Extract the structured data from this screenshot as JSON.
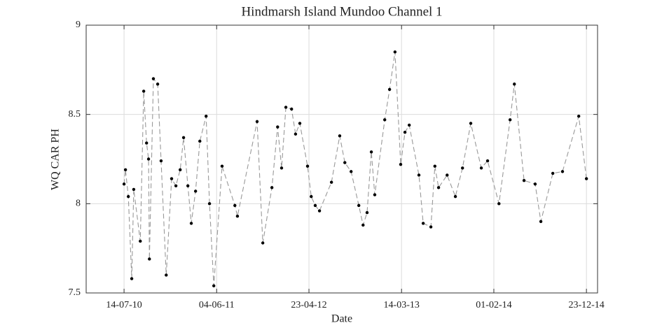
{
  "chart_data": {
    "type": "line",
    "title": "Hindmarsh Island Mundoo Channel 1",
    "x_label": "Date",
    "y_label": "WQ CAR PH",
    "x": [
      "2010-07-14",
      "2010-07-19",
      "2010-07-29",
      "2010-08-10",
      "2010-08-17",
      "2010-09-09",
      "2010-09-21",
      "2010-10-01",
      "2010-10-08",
      "2010-10-11",
      "2010-10-25",
      "2010-11-09",
      "2010-11-21",
      "2010-12-09",
      "2010-12-28",
      "2011-01-12",
      "2011-01-27",
      "2011-02-08",
      "2011-02-23",
      "2011-03-07",
      "2011-03-22",
      "2011-04-06",
      "2011-04-28",
      "2011-05-10",
      "2011-05-25",
      "2011-06-23",
      "2011-08-07",
      "2011-08-16",
      "2011-10-24",
      "2011-11-13",
      "2011-12-15",
      "2012-01-04",
      "2012-01-18",
      "2012-02-02",
      "2012-02-22",
      "2012-03-07",
      "2012-03-22",
      "2012-04-18",
      "2012-05-01",
      "2012-05-15",
      "2012-05-30",
      "2012-07-11",
      "2012-08-09",
      "2012-08-27",
      "2012-09-18",
      "2012-10-15",
      "2012-10-30",
      "2012-11-13",
      "2012-11-28",
      "2012-12-10",
      "2013-01-14",
      "2013-01-31",
      "2013-02-19",
      "2013-03-11",
      "2013-03-26",
      "2013-04-10",
      "2013-05-14",
      "2013-05-29",
      "2013-06-25",
      "2013-07-09",
      "2013-07-22",
      "2013-08-21",
      "2013-09-19",
      "2013-10-14",
      "2013-11-12",
      "2013-12-19",
      "2014-01-10",
      "2014-02-19",
      "2014-03-30",
      "2014-04-14",
      "2014-05-18",
      "2014-06-26",
      "2014-07-16",
      "2014-08-27",
      "2014-09-30",
      "2014-11-26",
      "2014-12-23"
    ],
    "series": [
      {
        "color": "#999999",
        "values": [
          8.11,
          8.19,
          8.04,
          7.58,
          8.08,
          7.79,
          8.63,
          8.34,
          8.25,
          7.69,
          8.7,
          8.67,
          8.24,
          7.6,
          8.14,
          8.1,
          8.19,
          8.37,
          8.1,
          7.89,
          8.07,
          8.35,
          8.49,
          8.0,
          7.54,
          8.21,
          7.99,
          7.93,
          8.46,
          7.78,
          8.09,
          8.43,
          8.2,
          8.54,
          8.53,
          8.39,
          8.45,
          8.21,
          8.04,
          7.99,
          7.96,
          8.12,
          8.38,
          8.23,
          8.18,
          7.99,
          7.88,
          7.95,
          8.29,
          8.05,
          8.47,
          8.64,
          8.85,
          8.22,
          8.4,
          8.44,
          8.16,
          7.89,
          7.87,
          8.21,
          8.09,
          8.16,
          8.04,
          8.2,
          8.45,
          8.2,
          8.24,
          8.0,
          8.47,
          8.67,
          8.13,
          8.11,
          7.9,
          8.17,
          8.18,
          8.49,
          8.14
        ]
      }
    ],
    "marker_color": "#000000",
    "xlim": [
      "2010-03-03",
      "2015-01-31"
    ],
    "xticks": [
      {
        "value": "2010-07-14",
        "label": "14-07-10"
      },
      {
        "value": "2011-06-04",
        "label": "04-06-11"
      },
      {
        "value": "2012-04-23",
        "label": "23-04-12"
      },
      {
        "value": "2013-03-14",
        "label": "14-03-13"
      },
      {
        "value": "2014-02-01",
        "label": "01-02-14"
      },
      {
        "value": "2014-12-23",
        "label": "23-12-14"
      }
    ],
    "ylim": [
      7.5,
      9
    ],
    "yticks": [
      7.5,
      8,
      8.5,
      9
    ],
    "grid": true
  }
}
